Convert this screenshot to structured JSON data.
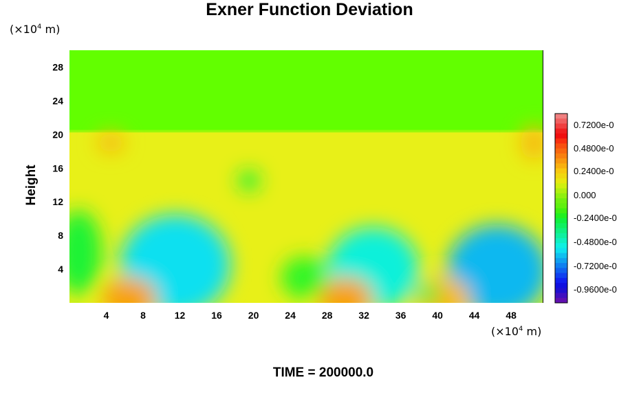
{
  "chart_data": {
    "type": "heatmap",
    "title": "Exner Function Deviation",
    "xlabel": "",
    "ylabel": "Height",
    "x_unit_prefix": "(×10",
    "x_unit_exp": "4",
    "x_unit_suffix": " m)",
    "y_unit_prefix": "(×10",
    "y_unit_exp": "4",
    "y_unit_suffix": " m)",
    "xlim": [
      0,
      51.5
    ],
    "ylim": [
      0,
      30
    ],
    "x_ticks": [
      4,
      8,
      12,
      16,
      20,
      24,
      28,
      32,
      36,
      40,
      44,
      48
    ],
    "y_ticks": [
      4,
      8,
      12,
      16,
      20,
      24,
      28
    ],
    "colorbar": {
      "ticks": [
        "0.7200e-0",
        "0.4800e-0",
        "0.2400e-0",
        "0.000",
        "-0.2400e-0",
        "-0.4800e-0",
        "-0.7200e-0",
        "-0.9600e-0"
      ],
      "colors": [
        "#f08080",
        "#f06060",
        "#f04040",
        "#f02020",
        "#f01010",
        "#f83010",
        "#f85010",
        "#f86810",
        "#f88010",
        "#f89810",
        "#f8b010",
        "#f8c810",
        "#f0d810",
        "#e8e810",
        "#d0f010",
        "#b0f010",
        "#90f010",
        "#70f010",
        "#60f010",
        "#40f010",
        "#20f020",
        "#10f040",
        "#10f060",
        "#10f080",
        "#10f0a0",
        "#10f0c0",
        "#10f0e0",
        "#10e0f0",
        "#10c0f0",
        "#10a0f0",
        "#1080f0",
        "#1060f0",
        "#1040f0",
        "#1020f0",
        "#1010e0",
        "#2010d0",
        "#4010c0",
        "#6010b0"
      ]
    },
    "field": {
      "background": "#62ff00",
      "regions": [
        {
          "kind": "band",
          "y0": 0,
          "y1": 20.3,
          "value": 0.15
        },
        {
          "kind": "blob",
          "x": 11.5,
          "y": 4.5,
          "rx": 6,
          "ry": 6,
          "value": -0.5
        },
        {
          "kind": "blob",
          "x": 33,
          "y": 4,
          "rx": 5,
          "ry": 5,
          "value": -0.45
        },
        {
          "kind": "blob",
          "x": 46.5,
          "y": 3.8,
          "rx": 5.5,
          "ry": 5.5,
          "value": -0.55
        },
        {
          "kind": "blob",
          "x": 19.5,
          "y": 14.5,
          "rx": 1.2,
          "ry": 1.2,
          "value": -0.2
        },
        {
          "kind": "blob",
          "x": 4.5,
          "y": 19,
          "rx": 1.5,
          "ry": 1.2,
          "value": 0.3
        },
        {
          "kind": "blob",
          "x": 50.5,
          "y": 19,
          "rx": 1.5,
          "ry": 2,
          "value": 0.3
        },
        {
          "kind": "blob",
          "x": 6.5,
          "y": 0.5,
          "rx": 3,
          "ry": 2.5,
          "value": 0.35
        },
        {
          "kind": "blob",
          "x": 30,
          "y": 0.5,
          "rx": 3,
          "ry": 2.5,
          "value": 0.35
        },
        {
          "kind": "blob",
          "x": 40.5,
          "y": 0.5,
          "rx": 3,
          "ry": 2.5,
          "value": 0.3
        },
        {
          "kind": "blob",
          "x": 1,
          "y": 6,
          "rx": 2.5,
          "ry": 5,
          "value": -0.2
        },
        {
          "kind": "blob",
          "x": 25.5,
          "y": 3,
          "rx": 2.5,
          "ry": 2.5,
          "value": -0.15
        },
        {
          "kind": "blob",
          "x": 39,
          "y": 1,
          "rx": 1.2,
          "ry": 1.2,
          "value": -0.25
        }
      ]
    }
  },
  "footer": "TIME = 200000.0"
}
